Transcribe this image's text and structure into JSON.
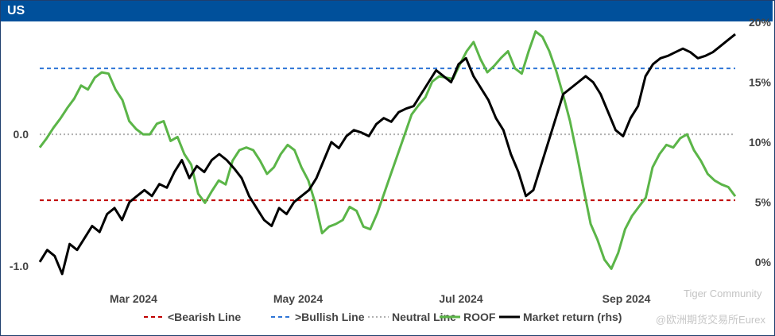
{
  "header": {
    "title": "US"
  },
  "watermark": {
    "line1": "Tiger Community",
    "line2": "@欧洲期货交易所Eurex"
  },
  "chart_data": {
    "type": "line",
    "title": "US",
    "x_tick_labels": [
      "Mar 2024",
      "May 2024",
      "Jul 2024",
      "Sep 2024"
    ],
    "y_left": {
      "ylim": [
        -1.15,
        0.85
      ],
      "ticks": [
        0.0,
        -1.0
      ],
      "tick_labels": [
        "0.0",
        "-1.0"
      ]
    },
    "y_right": {
      "ylim": [
        -0.02,
        0.2
      ],
      "ticks": [
        0.2,
        0.15,
        0.1,
        0.05,
        0.0
      ],
      "tick_labels": [
        "20%",
        "15%",
        "10%",
        "5%",
        "0%"
      ]
    },
    "reference_lines": [
      {
        "name": "<Bearish Line",
        "value": -0.5,
        "color": "#c00000",
        "axis": "left"
      },
      {
        "name": ">Bullish Line",
        "value": 0.5,
        "color": "#2e75d6",
        "axis": "left"
      },
      {
        "name": "Neutral Line",
        "value": 0.0,
        "color": "#b0b0b0",
        "axis": "left"
      }
    ],
    "series": [
      {
        "name": "ROOF",
        "axis": "left",
        "color": "#5bb548",
        "values": [
          -0.1,
          -0.03,
          0.05,
          0.12,
          0.2,
          0.27,
          0.37,
          0.34,
          0.43,
          0.47,
          0.46,
          0.34,
          0.26,
          0.1,
          0.04,
          0.0,
          0.0,
          0.08,
          0.1,
          -0.05,
          -0.02,
          -0.15,
          -0.23,
          -0.45,
          -0.52,
          -0.43,
          -0.35,
          -0.38,
          -0.2,
          -0.12,
          -0.1,
          -0.12,
          -0.2,
          -0.3,
          -0.25,
          -0.15,
          -0.08,
          -0.12,
          -0.25,
          -0.35,
          -0.52,
          -0.75,
          -0.7,
          -0.68,
          -0.65,
          -0.55,
          -0.58,
          -0.7,
          -0.72,
          -0.6,
          -0.45,
          -0.3,
          -0.15,
          0.0,
          0.15,
          0.22,
          0.28,
          0.4,
          0.44,
          0.43,
          0.42,
          0.53,
          0.63,
          0.7,
          0.57,
          0.47,
          0.52,
          0.58,
          0.63,
          0.5,
          0.46,
          0.63,
          0.78,
          0.74,
          0.63,
          0.48,
          0.3,
          0.1,
          -0.15,
          -0.42,
          -0.68,
          -0.8,
          -0.95,
          -1.02,
          -0.9,
          -0.72,
          -0.62,
          -0.55,
          -0.48,
          -0.25,
          -0.15,
          -0.08,
          -0.1,
          -0.03,
          0.0,
          -0.12,
          -0.2,
          -0.3,
          -0.35,
          -0.38,
          -0.4,
          -0.47
        ]
      },
      {
        "name": "Market return (rhs)",
        "axis": "right",
        "color": "#000000",
        "values": [
          0.0,
          0.01,
          0.005,
          -0.01,
          0.015,
          0.01,
          0.02,
          0.03,
          0.025,
          0.04,
          0.045,
          0.035,
          0.05,
          0.055,
          0.06,
          0.055,
          0.065,
          0.062,
          0.075,
          0.085,
          0.07,
          0.08,
          0.075,
          0.085,
          0.09,
          0.085,
          0.078,
          0.07,
          0.055,
          0.045,
          0.035,
          0.03,
          0.045,
          0.04,
          0.05,
          0.055,
          0.06,
          0.07,
          0.085,
          0.1,
          0.095,
          0.105,
          0.11,
          0.108,
          0.105,
          0.115,
          0.12,
          0.117,
          0.125,
          0.128,
          0.13,
          0.14,
          0.15,
          0.16,
          0.155,
          0.15,
          0.165,
          0.17,
          0.155,
          0.145,
          0.135,
          0.12,
          0.11,
          0.09,
          0.075,
          0.055,
          0.06,
          0.08,
          0.1,
          0.12,
          0.14,
          0.145,
          0.15,
          0.155,
          0.15,
          0.14,
          0.125,
          0.11,
          0.105,
          0.12,
          0.13,
          0.155,
          0.165,
          0.17,
          0.172,
          0.175,
          0.178,
          0.175,
          0.17,
          0.172,
          0.175,
          0.18,
          0.185,
          0.19
        ]
      }
    ],
    "legend": {
      "placement": "bottom"
    }
  }
}
